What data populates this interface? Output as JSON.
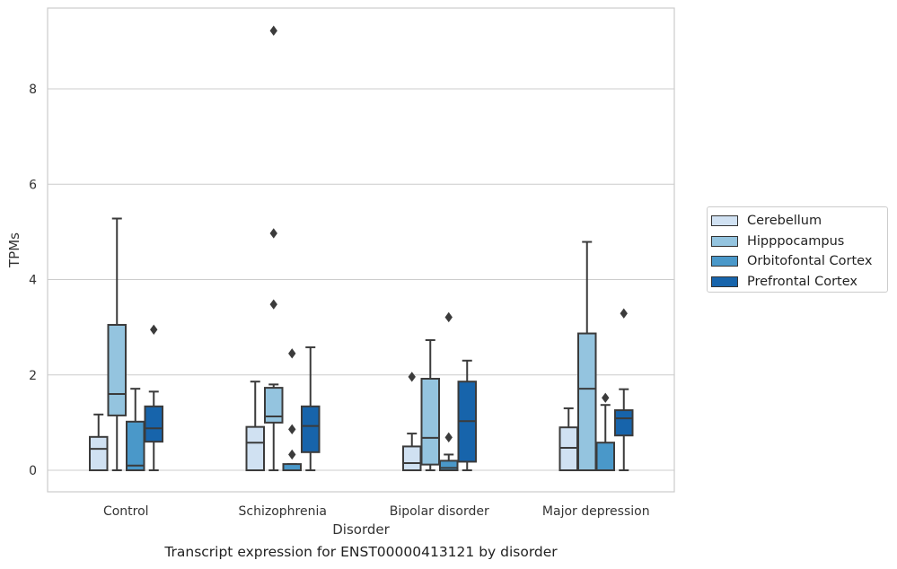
{
  "caption": "Transcript expression for ENST00000413121 by disorder",
  "chart_data": {
    "type": "box",
    "title": "",
    "xlabel": "Disorder",
    "ylabel": "TPMs",
    "ylim": [
      -0.45,
      9.7
    ],
    "yticks": [
      0,
      2,
      4,
      6,
      8
    ],
    "grid": true,
    "legend_position": "right",
    "categories": [
      "Control",
      "Schizophrenia",
      "Bipolar disorder",
      "Major depression"
    ],
    "series": [
      {
        "name": "Cerebellum",
        "color": "#d0e1f2",
        "boxes": [
          {
            "min": 0,
            "q1": 0,
            "median": 0.45,
            "q3": 0.7,
            "max": 1.17,
            "outliers": []
          },
          {
            "min": 0,
            "q1": 0,
            "median": 0.58,
            "q3": 0.91,
            "max": 1.86,
            "outliers": []
          },
          {
            "min": 0,
            "q1": 0,
            "median": 0.15,
            "q3": 0.5,
            "max": 0.77,
            "outliers": [
              1.96
            ]
          },
          {
            "min": 0,
            "q1": 0,
            "median": 0.47,
            "q3": 0.9,
            "max": 1.3,
            "outliers": []
          }
        ]
      },
      {
        "name": "Hipppocampus",
        "color": "#94c4df",
        "boxes": [
          {
            "min": 0,
            "q1": 1.15,
            "median": 1.6,
            "q3": 3.05,
            "max": 5.28,
            "outliers": []
          },
          {
            "min": 0,
            "q1": 1.0,
            "median": 1.13,
            "q3": 1.73,
            "max": 1.8,
            "outliers": [
              3.48,
              4.97,
              9.22
            ]
          },
          {
            "min": 0,
            "q1": 0.12,
            "median": 0.68,
            "q3": 1.92,
            "max": 2.73,
            "outliers": []
          },
          {
            "min": 0,
            "q1": 0,
            "median": 1.71,
            "q3": 2.87,
            "max": 4.79,
            "outliers": []
          }
        ]
      },
      {
        "name": "Orbitofontal Cortex",
        "color": "#4a98c9",
        "boxes": [
          {
            "min": 0,
            "q1": 0,
            "median": 0.1,
            "q3": 1.02,
            "max": 1.71,
            "outliers": []
          },
          {
            "min": 0,
            "q1": 0,
            "median": 0,
            "q3": 0.13,
            "max": 0.13,
            "outliers": [
              0.33,
              0.86,
              2.45
            ]
          },
          {
            "min": 0,
            "q1": 0,
            "median": 0.05,
            "q3": 0.2,
            "max": 0.33,
            "outliers": [
              0.69,
              3.21
            ]
          },
          {
            "min": 0,
            "q1": 0,
            "median": 0,
            "q3": 0.58,
            "max": 1.37,
            "outliers": [
              1.52
            ]
          }
        ]
      },
      {
        "name": "Prefrontal Cortex",
        "color": "#1764ab",
        "boxes": [
          {
            "min": 0,
            "q1": 0.6,
            "median": 0.88,
            "q3": 1.34,
            "max": 1.65,
            "outliers": [
              2.95
            ]
          },
          {
            "min": 0,
            "q1": 0.38,
            "median": 0.93,
            "q3": 1.34,
            "max": 2.58,
            "outliers": []
          },
          {
            "min": 0,
            "q1": 0.18,
            "median": 1.03,
            "q3": 1.86,
            "max": 2.3,
            "outliers": []
          },
          {
            "min": 0,
            "q1": 0.73,
            "median": 1.09,
            "q3": 1.26,
            "max": 1.7,
            "outliers": [
              3.29
            ]
          }
        ]
      }
    ]
  }
}
